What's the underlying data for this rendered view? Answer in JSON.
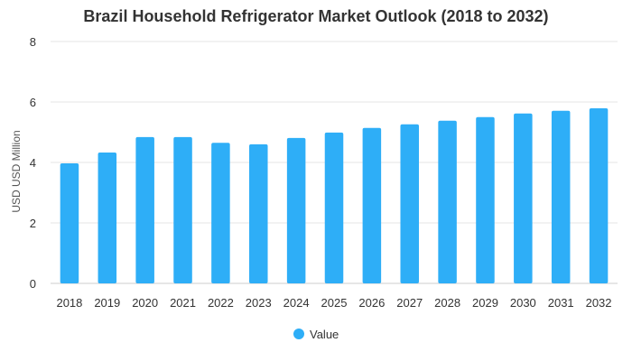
{
  "chart_data": {
    "type": "bar",
    "title": "Brazil Household Refrigerator Market Outlook (2018 to 2032)",
    "xlabel": "",
    "ylabel": "USD USD Million",
    "ylim": [
      0,
      8
    ],
    "yticks": [
      0,
      2,
      4,
      6,
      8
    ],
    "categories": [
      "2018",
      "2019",
      "2020",
      "2021",
      "2022",
      "2023",
      "2024",
      "2025",
      "2026",
      "2027",
      "2028",
      "2029",
      "2030",
      "2031",
      "2032"
    ],
    "series": [
      {
        "name": "Value",
        "color": "#2eaef7",
        "values": [
          3.97,
          4.33,
          4.84,
          4.84,
          4.65,
          4.6,
          4.81,
          4.99,
          5.14,
          5.26,
          5.38,
          5.5,
          5.62,
          5.71,
          5.79
        ]
      }
    ],
    "grid": true,
    "legend": "bottom-center"
  }
}
